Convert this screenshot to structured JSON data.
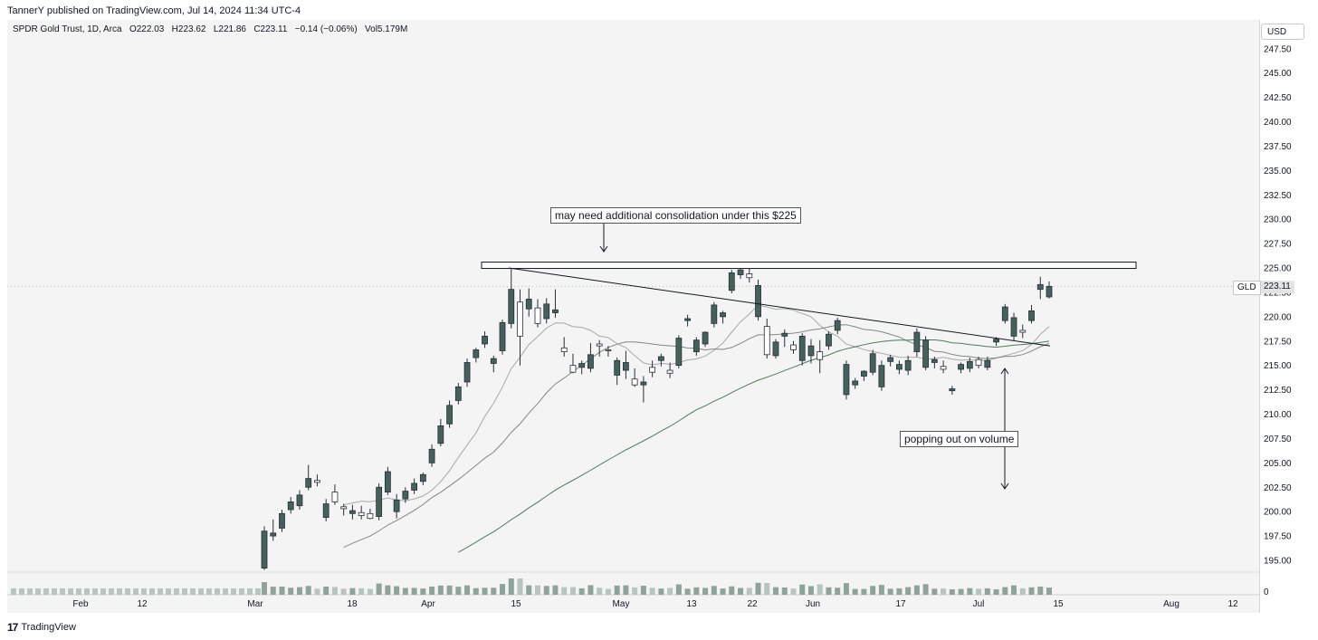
{
  "header": {
    "published": "TannerY published on TradingView.com, Jul 14, 2024 11:34 UTC-4"
  },
  "legend": {
    "symbol": "SPDR Gold Trust, 1D, Arca",
    "open": "O222.03",
    "high": "H223.62",
    "low": "L221.86",
    "close": "C223.11",
    "change": "−0.14 (−0.06%)",
    "volume": "Vol5.179M"
  },
  "price_axis": {
    "currency": "USD",
    "last_symbol": "GLD",
    "last_price": "223.11"
  },
  "annotations": {
    "top": "may need additional consolidation under this $225",
    "bottom": "popping out on volume"
  },
  "footer": {
    "brand": "TradingView",
    "logo": "17"
  },
  "colors": {
    "bull": "#45625a",
    "bear": "#ffffff",
    "candle_outline": "#2a2e39",
    "ma_short": "#a8a8a8",
    "ma_mid": "#7d8a82",
    "ma_long": "#4f7a5c",
    "volume": "#8fa39a"
  },
  "chart_data": {
    "type": "candlestick",
    "symbol": "GLD",
    "yticks": [
      "247.50",
      "245.00",
      "242.50",
      "240.00",
      "237.50",
      "235.00",
      "232.50",
      "230.00",
      "227.50",
      "225.00",
      "222.50",
      "220.00",
      "217.50",
      "215.00",
      "212.50",
      "210.00",
      "207.50",
      "205.00",
      "202.50",
      "200.00",
      "197.50",
      "195.00"
    ],
    "xticks": [
      "Feb",
      "12",
      "Mar",
      "18",
      "Apr",
      "15",
      "May",
      "13",
      "22",
      "Jun",
      "17",
      "Jul",
      "15",
      "Aug",
      "12"
    ],
    "volume_tick": "0",
    "ylim": [
      193.5,
      249
    ],
    "candles": [
      {
        "o": 194.2,
        "h": 198.5,
        "l": 194.0,
        "c": 198.0
      },
      {
        "o": 197.5,
        "h": 199.2,
        "l": 197.0,
        "c": 197.8
      },
      {
        "o": 198.3,
        "h": 200.2,
        "l": 197.9,
        "c": 199.8
      },
      {
        "o": 200.2,
        "h": 201.5,
        "l": 199.8,
        "c": 201.0
      },
      {
        "o": 200.6,
        "h": 202.2,
        "l": 200.2,
        "c": 201.7
      },
      {
        "o": 202.5,
        "h": 204.8,
        "l": 202.2,
        "c": 203.4
      },
      {
        "o": 203.2,
        "h": 203.8,
        "l": 202.6,
        "c": 203.0
      },
      {
        "o": 199.4,
        "h": 201.3,
        "l": 199.0,
        "c": 200.8
      },
      {
        "o": 202.0,
        "h": 202.8,
        "l": 200.7,
        "c": 201.0
      },
      {
        "o": 200.5,
        "h": 200.8,
        "l": 199.6,
        "c": 200.3
      },
      {
        "o": 199.8,
        "h": 200.7,
        "l": 199.2,
        "c": 200.1
      },
      {
        "o": 199.9,
        "h": 200.6,
        "l": 199.2,
        "c": 199.6
      },
      {
        "o": 199.8,
        "h": 200.3,
        "l": 199.2,
        "c": 199.3
      },
      {
        "o": 199.5,
        "h": 202.9,
        "l": 199.1,
        "c": 202.5
      },
      {
        "o": 202.0,
        "h": 204.6,
        "l": 201.7,
        "c": 204.1
      },
      {
        "o": 200.0,
        "h": 201.8,
        "l": 199.3,
        "c": 201.2
      },
      {
        "o": 201.3,
        "h": 202.5,
        "l": 200.9,
        "c": 202.1
      },
      {
        "o": 202.2,
        "h": 203.4,
        "l": 201.8,
        "c": 202.9
      },
      {
        "o": 203.1,
        "h": 204.0,
        "l": 202.7,
        "c": 203.8
      },
      {
        "o": 205.0,
        "h": 206.9,
        "l": 204.6,
        "c": 206.4
      },
      {
        "o": 207.0,
        "h": 209.5,
        "l": 206.7,
        "c": 208.8
      },
      {
        "o": 209.0,
        "h": 211.4,
        "l": 208.6,
        "c": 210.9
      },
      {
        "o": 211.4,
        "h": 213.2,
        "l": 211.0,
        "c": 212.8
      },
      {
        "o": 213.3,
        "h": 215.7,
        "l": 212.8,
        "c": 215.3
      },
      {
        "o": 215.8,
        "h": 216.8,
        "l": 215.3,
        "c": 216.6
      },
      {
        "o": 217.2,
        "h": 218.5,
        "l": 216.8,
        "c": 218.0
      },
      {
        "o": 215.2,
        "h": 216.0,
        "l": 214.3,
        "c": 215.7
      },
      {
        "o": 216.5,
        "h": 219.7,
        "l": 216.1,
        "c": 219.4
      },
      {
        "o": 219.3,
        "h": 225.2,
        "l": 218.8,
        "c": 222.8
      },
      {
        "o": 221.5,
        "h": 222.8,
        "l": 215.0,
        "c": 218.0
      },
      {
        "o": 220.8,
        "h": 222.9,
        "l": 220.0,
        "c": 221.8
      },
      {
        "o": 220.9,
        "h": 221.8,
        "l": 218.9,
        "c": 219.3
      },
      {
        "o": 219.8,
        "h": 221.9,
        "l": 219.3,
        "c": 221.3
      },
      {
        "o": 220.4,
        "h": 222.8,
        "l": 219.9,
        "c": 220.7
      },
      {
        "o": 216.8,
        "h": 217.9,
        "l": 215.9,
        "c": 216.4
      },
      {
        "o": 215.0,
        "h": 216.2,
        "l": 214.2,
        "c": 214.3
      },
      {
        "o": 214.8,
        "h": 215.5,
        "l": 214.1,
        "c": 215.2
      },
      {
        "o": 214.7,
        "h": 217.3,
        "l": 214.3,
        "c": 216.1
      },
      {
        "o": 217.2,
        "h": 217.6,
        "l": 215.9,
        "c": 217.0
      },
      {
        "o": 216.6,
        "h": 217.0,
        "l": 215.9,
        "c": 216.5
      },
      {
        "o": 214.0,
        "h": 215.8,
        "l": 213.0,
        "c": 215.5
      },
      {
        "o": 214.5,
        "h": 216.5,
        "l": 213.6,
        "c": 215.3
      },
      {
        "o": 213.6,
        "h": 214.7,
        "l": 212.8,
        "c": 213.0
      },
      {
        "o": 213.0,
        "h": 213.9,
        "l": 211.2,
        "c": 213.3
      },
      {
        "o": 214.8,
        "h": 215.5,
        "l": 213.8,
        "c": 214.3
      },
      {
        "o": 215.5,
        "h": 216.2,
        "l": 214.9,
        "c": 215.9
      },
      {
        "o": 214.5,
        "h": 215.3,
        "l": 213.7,
        "c": 214.2
      },
      {
        "o": 215.0,
        "h": 218.1,
        "l": 214.7,
        "c": 217.8
      },
      {
        "o": 219.6,
        "h": 220.2,
        "l": 219.0,
        "c": 219.8
      },
      {
        "o": 216.4,
        "h": 217.9,
        "l": 216.0,
        "c": 217.6
      },
      {
        "o": 217.2,
        "h": 218.5,
        "l": 216.9,
        "c": 218.4
      },
      {
        "o": 219.3,
        "h": 221.5,
        "l": 218.9,
        "c": 221.2
      },
      {
        "o": 220.0,
        "h": 220.6,
        "l": 219.3,
        "c": 220.4
      },
      {
        "o": 222.7,
        "h": 224.8,
        "l": 222.4,
        "c": 224.5
      },
      {
        "o": 224.3,
        "h": 225.5,
        "l": 223.9,
        "c": 224.8
      },
      {
        "o": 224.4,
        "h": 225.1,
        "l": 223.5,
        "c": 224.0
      },
      {
        "o": 220.0,
        "h": 223.8,
        "l": 219.6,
        "c": 223.2
      },
      {
        "o": 219.0,
        "h": 219.8,
        "l": 215.7,
        "c": 216.1
      },
      {
        "o": 216.0,
        "h": 217.7,
        "l": 215.7,
        "c": 217.4
      },
      {
        "o": 218.0,
        "h": 218.7,
        "l": 216.9,
        "c": 218.3
      },
      {
        "o": 217.1,
        "h": 217.5,
        "l": 216.2,
        "c": 216.6
      },
      {
        "o": 215.5,
        "h": 218.3,
        "l": 215.0,
        "c": 218.0
      },
      {
        "o": 216.0,
        "h": 217.7,
        "l": 215.2,
        "c": 217.0
      },
      {
        "o": 216.4,
        "h": 217.6,
        "l": 214.2,
        "c": 215.6
      },
      {
        "o": 217.0,
        "h": 218.5,
        "l": 216.6,
        "c": 218.2
      },
      {
        "o": 218.6,
        "h": 219.9,
        "l": 218.2,
        "c": 219.6
      },
      {
        "o": 212.0,
        "h": 215.5,
        "l": 211.5,
        "c": 215.1
      },
      {
        "o": 213.0,
        "h": 213.7,
        "l": 212.6,
        "c": 213.4
      },
      {
        "o": 213.9,
        "h": 214.5,
        "l": 213.4,
        "c": 214.4
      },
      {
        "o": 214.3,
        "h": 216.6,
        "l": 214.0,
        "c": 216.2
      },
      {
        "o": 212.8,
        "h": 215.5,
        "l": 212.4,
        "c": 215.0
      },
      {
        "o": 215.4,
        "h": 216.1,
        "l": 214.9,
        "c": 215.8
      },
      {
        "o": 214.6,
        "h": 215.5,
        "l": 214.1,
        "c": 215.1
      },
      {
        "o": 214.5,
        "h": 216.0,
        "l": 214.0,
        "c": 215.5
      },
      {
        "o": 216.4,
        "h": 218.8,
        "l": 215.9,
        "c": 218.4
      },
      {
        "o": 214.8,
        "h": 218.0,
        "l": 214.5,
        "c": 217.6
      },
      {
        "o": 215.3,
        "h": 215.9,
        "l": 214.7,
        "c": 215.6
      },
      {
        "o": 214.9,
        "h": 215.5,
        "l": 214.2,
        "c": 214.6
      },
      {
        "o": 212.4,
        "h": 212.9,
        "l": 212.0,
        "c": 212.6
      },
      {
        "o": 214.6,
        "h": 215.3,
        "l": 214.2,
        "c": 215.1
      },
      {
        "o": 214.7,
        "h": 215.8,
        "l": 214.3,
        "c": 215.4
      },
      {
        "o": 215.6,
        "h": 215.9,
        "l": 214.7,
        "c": 215.0
      },
      {
        "o": 214.8,
        "h": 215.9,
        "l": 214.5,
        "c": 215.5
      },
      {
        "o": 217.4,
        "h": 217.9,
        "l": 217.0,
        "c": 217.7
      },
      {
        "o": 219.6,
        "h": 221.3,
        "l": 219.3,
        "c": 221.0
      },
      {
        "o": 218.0,
        "h": 220.4,
        "l": 217.5,
        "c": 219.9
      },
      {
        "o": 218.6,
        "h": 219.2,
        "l": 217.8,
        "c": 218.4
      },
      {
        "o": 219.6,
        "h": 221.2,
        "l": 219.3,
        "c": 220.6
      },
      {
        "o": 222.8,
        "h": 224.1,
        "l": 221.8,
        "c": 223.3
      },
      {
        "o": 222.03,
        "h": 223.62,
        "l": 221.86,
        "c": 223.11
      }
    ]
  }
}
